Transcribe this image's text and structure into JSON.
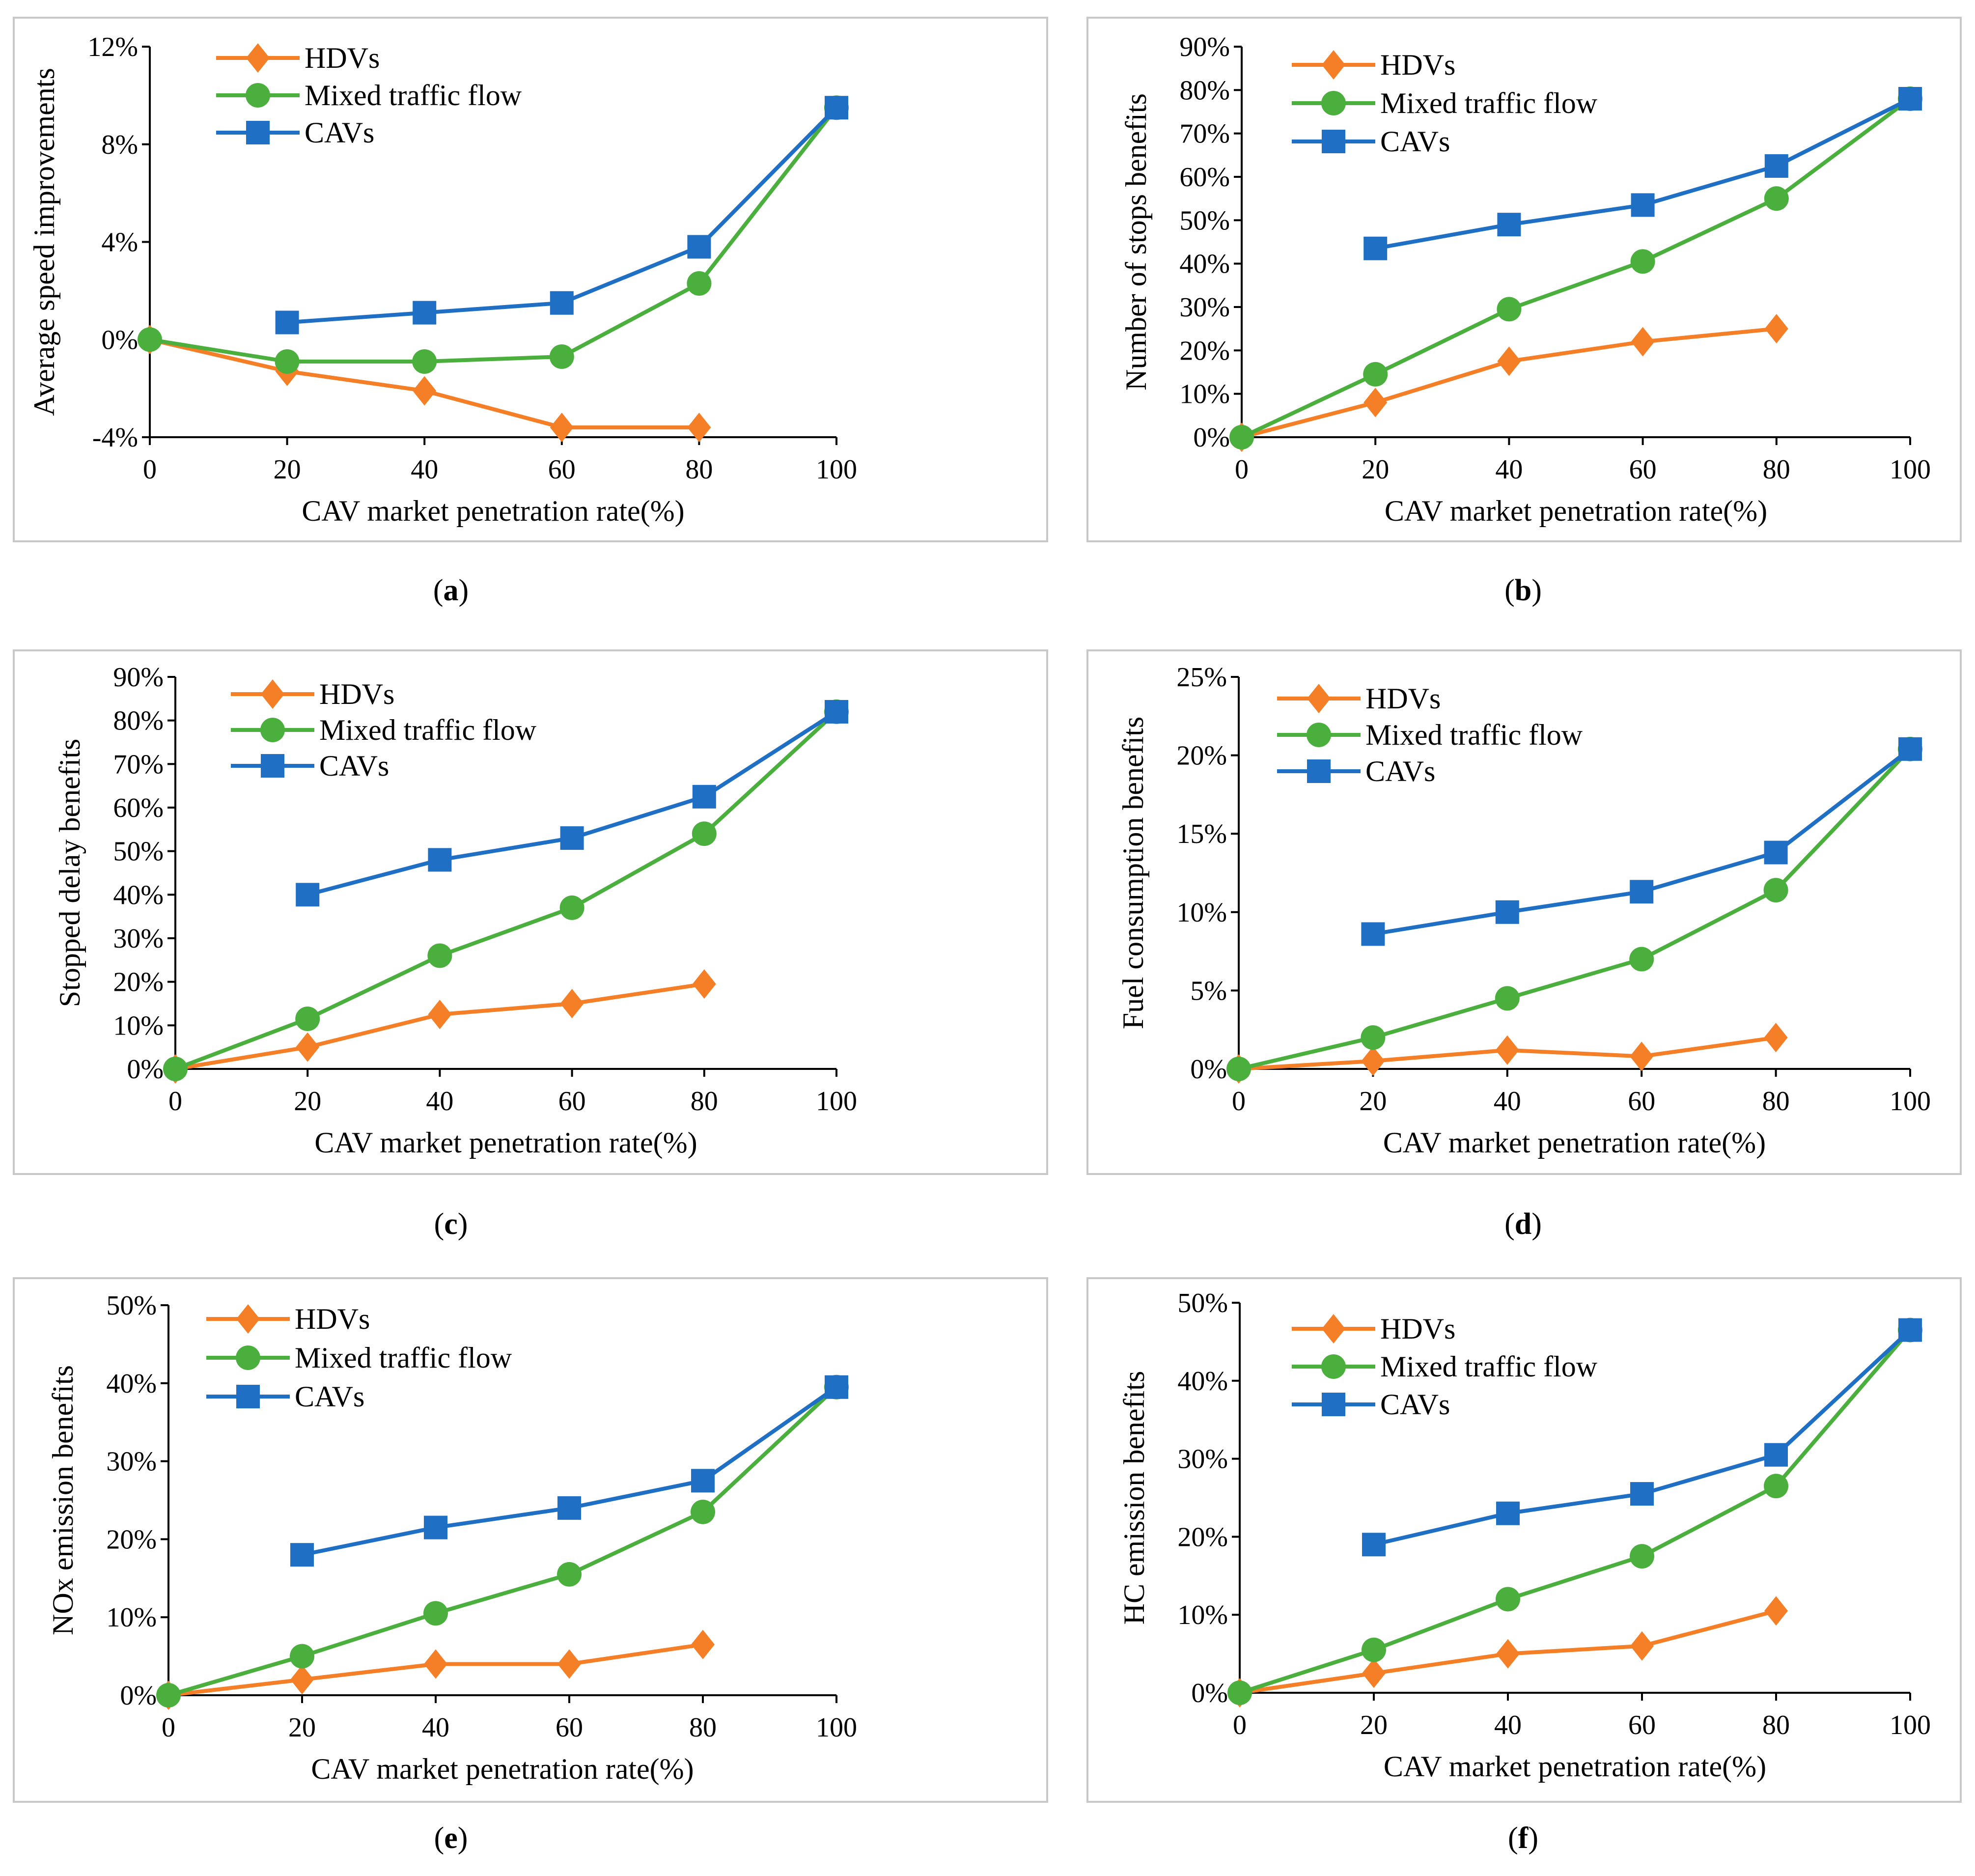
{
  "colors": {
    "HDVs": "#F47F26",
    "Mixed traffic flow": "#4BAF3E",
    "CAVs": "#1F6FC4"
  },
  "chart_data": [
    {
      "type": "line",
      "caption_letter": "a",
      "ylabel": "Average speed improvements",
      "xlabel": "CAV market penetration rate(%)",
      "x": [
        0,
        20,
        40,
        60,
        80,
        100
      ],
      "xtick_labels": [
        "0",
        "20",
        "40",
        "60",
        "80",
        "100"
      ],
      "ylim": [
        -4,
        12
      ],
      "yticks": [
        -4,
        0,
        4,
        8,
        12
      ],
      "ytick_labels": [
        "-4%",
        "0%",
        "4%",
        "8%",
        "12%"
      ],
      "series": [
        {
          "name": "HDVs",
          "marker": "diamond",
          "x": [
            0,
            20,
            40,
            60,
            80
          ],
          "values": [
            0,
            -1.3,
            -2.1,
            -3.6,
            -3.6
          ]
        },
        {
          "name": "Mixed traffic flow",
          "marker": "circle",
          "x": [
            0,
            20,
            40,
            60,
            80,
            100
          ],
          "values": [
            0,
            -0.9,
            -0.9,
            -0.7,
            2.3,
            9.5
          ]
        },
        {
          "name": "CAVs",
          "marker": "square",
          "x": [
            20,
            40,
            60,
            80,
            100
          ],
          "values": [
            0.7,
            1.1,
            1.5,
            3.8,
            9.5
          ]
        }
      ]
    },
    {
      "type": "line",
      "caption_letter": "b",
      "ylabel": "Number of stops benefits",
      "xlabel": "CAV market penetration rate(%)",
      "x": [
        0,
        20,
        40,
        60,
        80,
        100
      ],
      "xtick_labels": [
        "0",
        "20",
        "40",
        "60",
        "80",
        "100"
      ],
      "ylim": [
        0,
        90
      ],
      "yticks": [
        0,
        10,
        20,
        30,
        40,
        50,
        60,
        70,
        80,
        90
      ],
      "ytick_labels": [
        "0%",
        "10%",
        "20%",
        "30%",
        "40%",
        "50%",
        "60%",
        "70%",
        "80%",
        "90%"
      ],
      "series": [
        {
          "name": "HDVs",
          "marker": "diamond",
          "x": [
            0,
            20,
            40,
            60,
            80
          ],
          "values": [
            0,
            8,
            17.5,
            22,
            25
          ]
        },
        {
          "name": "Mixed traffic flow",
          "marker": "circle",
          "x": [
            0,
            20,
            40,
            60,
            80,
            100
          ],
          "values": [
            0,
            14.5,
            29.5,
            40.5,
            55,
            78
          ]
        },
        {
          "name": "CAVs",
          "marker": "square",
          "x": [
            20,
            40,
            60,
            80,
            100
          ],
          "values": [
            43.5,
            49,
            53.5,
            62.5,
            78
          ]
        }
      ]
    },
    {
      "type": "line",
      "caption_letter": "c",
      "ylabel": "Stopped delay benefits",
      "xlabel": "CAV market penetration rate(%)",
      "x": [
        0,
        20,
        40,
        60,
        80,
        100
      ],
      "xtick_labels": [
        "0",
        "20",
        "40",
        "60",
        "80",
        "100"
      ],
      "ylim": [
        0,
        90
      ],
      "yticks": [
        0,
        10,
        20,
        30,
        40,
        50,
        60,
        70,
        80,
        90
      ],
      "ytick_labels": [
        "0%",
        "10%",
        "20%",
        "30%",
        "40%",
        "50%",
        "60%",
        "70%",
        "80%",
        "90%"
      ],
      "series": [
        {
          "name": "HDVs",
          "marker": "diamond",
          "x": [
            0,
            20,
            40,
            60,
            80
          ],
          "values": [
            0,
            5,
            12.5,
            15,
            19.5
          ]
        },
        {
          "name": "Mixed traffic flow",
          "marker": "circle",
          "x": [
            0,
            20,
            40,
            60,
            80,
            100
          ],
          "values": [
            0,
            11.5,
            26,
            37,
            54,
            82
          ]
        },
        {
          "name": "CAVs",
          "marker": "square",
          "x": [
            20,
            40,
            60,
            80,
            100
          ],
          "values": [
            40,
            48,
            53,
            62.5,
            82
          ]
        }
      ]
    },
    {
      "type": "line",
      "caption_letter": "d",
      "ylabel": "Fuel consumption benefits",
      "xlabel": "CAV market penetration rate(%)",
      "x": [
        0,
        20,
        40,
        60,
        80,
        100
      ],
      "xtick_labels": [
        "0",
        "20",
        "40",
        "60",
        "80",
        "100"
      ],
      "ylim": [
        0,
        25
      ],
      "yticks": [
        0,
        5,
        10,
        15,
        20,
        25
      ],
      "ytick_labels": [
        "0%",
        "5%",
        "10%",
        "15%",
        "20%",
        "25%"
      ],
      "series": [
        {
          "name": "HDVs",
          "marker": "diamond",
          "x": [
            0,
            20,
            40,
            60,
            80
          ],
          "values": [
            0,
            0.5,
            1.2,
            0.8,
            2
          ]
        },
        {
          "name": "Mixed traffic flow",
          "marker": "circle",
          "x": [
            0,
            20,
            40,
            60,
            80,
            100
          ],
          "values": [
            0,
            2,
            4.5,
            7,
            11.4,
            20.4
          ]
        },
        {
          "name": "CAVs",
          "marker": "square",
          "x": [
            20,
            40,
            60,
            80,
            100
          ],
          "values": [
            8.6,
            10,
            11.3,
            13.8,
            20.4
          ]
        }
      ]
    },
    {
      "type": "line",
      "caption_letter": "e",
      "ylabel": "NOx emission benefits",
      "xlabel": "CAV market penetration rate(%)",
      "x": [
        0,
        20,
        40,
        60,
        80,
        100
      ],
      "xtick_labels": [
        "0",
        "20",
        "40",
        "60",
        "80",
        "100"
      ],
      "ylim": [
        0,
        50
      ],
      "yticks": [
        0,
        10,
        20,
        30,
        40,
        50
      ],
      "ytick_labels": [
        "0%",
        "10%",
        "20%",
        "30%",
        "40%",
        "50%"
      ],
      "series": [
        {
          "name": "HDVs",
          "marker": "diamond",
          "x": [
            0,
            20,
            40,
            60,
            80
          ],
          "values": [
            0,
            2,
            4,
            4,
            6.5
          ]
        },
        {
          "name": "Mixed traffic flow",
          "marker": "circle",
          "x": [
            0,
            20,
            40,
            60,
            80,
            100
          ],
          "values": [
            0,
            5,
            10.5,
            15.5,
            23.5,
            39.5
          ]
        },
        {
          "name": "CAVs",
          "marker": "square",
          "x": [
            20,
            40,
            60,
            80,
            100
          ],
          "values": [
            18,
            21.5,
            24,
            27.5,
            39.5
          ]
        }
      ]
    },
    {
      "type": "line",
      "caption_letter": "f",
      "ylabel": "HC emission benefits",
      "xlabel": "CAV market penetration rate(%)",
      "x": [
        0,
        20,
        40,
        60,
        80,
        100
      ],
      "xtick_labels": [
        "0",
        "20",
        "40",
        "60",
        "80",
        "100"
      ],
      "ylim": [
        0,
        50
      ],
      "yticks": [
        0,
        10,
        20,
        30,
        40,
        50
      ],
      "ytick_labels": [
        "0%",
        "10%",
        "20%",
        "30%",
        "40%",
        "50%"
      ],
      "series": [
        {
          "name": "HDVs",
          "marker": "diamond",
          "x": [
            0,
            20,
            40,
            60,
            80
          ],
          "values": [
            0,
            2.5,
            5,
            6,
            10.5
          ]
        },
        {
          "name": "Mixed traffic flow",
          "marker": "circle",
          "x": [
            0,
            20,
            40,
            60,
            80,
            100
          ],
          "values": [
            0,
            5.5,
            12,
            17.5,
            26.5,
            46.5
          ]
        },
        {
          "name": "CAVs",
          "marker": "square",
          "x": [
            20,
            40,
            60,
            80,
            100
          ],
          "values": [
            19,
            23,
            25.5,
            30.5,
            46.5
          ]
        }
      ]
    }
  ]
}
